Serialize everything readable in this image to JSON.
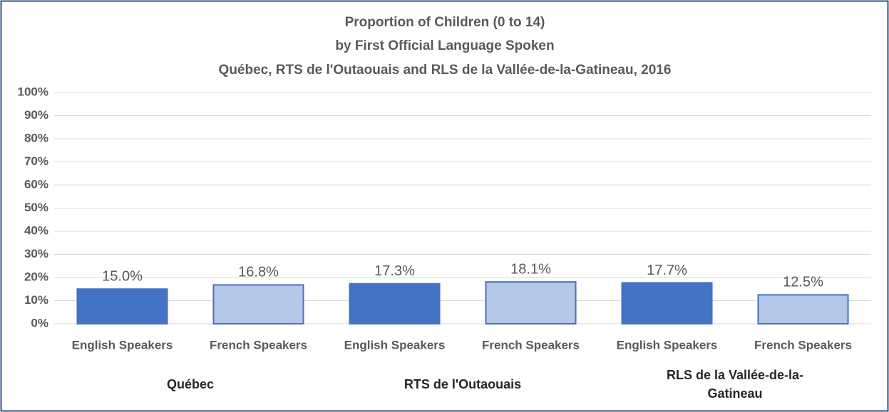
{
  "chart_data": {
    "type": "bar",
    "title": [
      "Proportion of Children (0 to 14)",
      "by First Official Language Spoken",
      "Québec, RTS de l'Outaouais and RLS de la Vallée-de-la-Gatineau, 2016"
    ],
    "groups": [
      {
        "name": "Québec",
        "categories": [
          "English Speakers",
          "French Speakers"
        ],
        "values": [
          15.0,
          16.8
        ],
        "value_labels": [
          "15.0%",
          "16.8%"
        ]
      },
      {
        "name": "RTS de l'Outaouais",
        "categories": [
          "English Speakers",
          "French Speakers"
        ],
        "values": [
          17.3,
          18.1
        ],
        "value_labels": [
          "17.3%",
          "18.1%"
        ]
      },
      {
        "name": "RLS de la Vallée-de-la-Gatineau",
        "categories": [
          "English Speakers",
          "French Speakers"
        ],
        "values": [
          17.7,
          12.5
        ],
        "value_labels": [
          "17.7%",
          "12.5%"
        ]
      }
    ],
    "colors": [
      "#4472c4",
      "#b4c7e7"
    ],
    "ylim": [
      0,
      100
    ],
    "yticks": [
      {
        "value": 0,
        "label": "0%"
      },
      {
        "value": 10,
        "label": "10%"
      },
      {
        "value": 20,
        "label": "20%"
      },
      {
        "value": 30,
        "label": "30%"
      },
      {
        "value": 40,
        "label": "40%"
      },
      {
        "value": 50,
        "label": "50%"
      },
      {
        "value": 60,
        "label": "60%"
      },
      {
        "value": 70,
        "label": "70%"
      },
      {
        "value": 80,
        "label": "80%"
      },
      {
        "value": 90,
        "label": "90%"
      },
      {
        "value": 100,
        "label": "100%"
      }
    ],
    "grid": true
  }
}
